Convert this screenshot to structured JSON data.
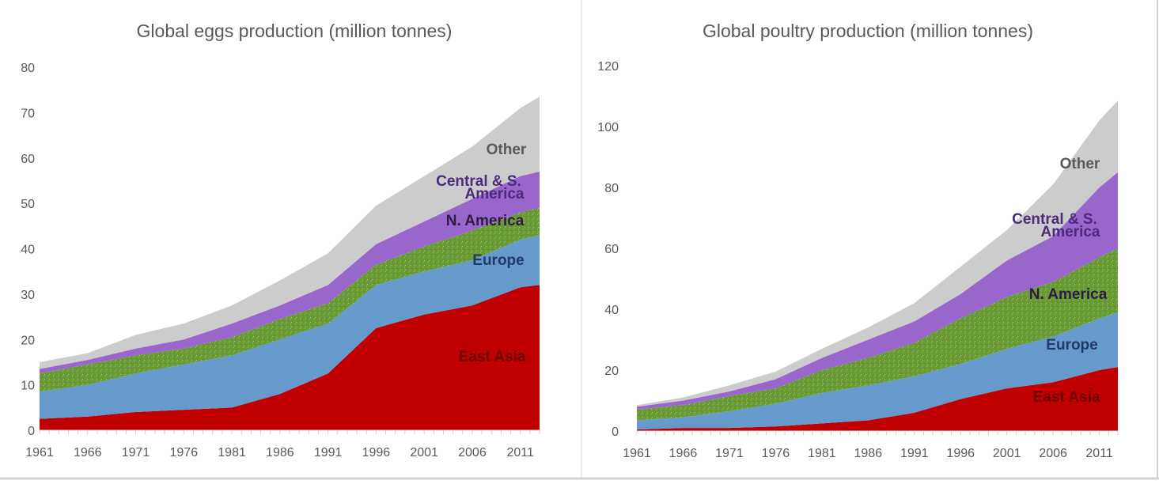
{
  "chart_data": [
    {
      "type": "area",
      "stacked": true,
      "title": "Global eggs production (million tonnes)",
      "xlabel": "",
      "ylabel": "",
      "ylim": [
        0,
        80
      ],
      "yticks": [
        0,
        10,
        20,
        30,
        40,
        50,
        60,
        70,
        80
      ],
      "xtick_labels": [
        "1961",
        "1966",
        "1971",
        "1976",
        "1981",
        "1986",
        "1991",
        "1996",
        "2001",
        "2006",
        "2011"
      ],
      "xlim": [
        1961,
        2013
      ],
      "grid": false,
      "legend": "inline labels on right",
      "x": [
        1961,
        1966,
        1971,
        1976,
        1981,
        1986,
        1991,
        1996,
        2001,
        2006,
        2011,
        2013
      ],
      "series": [
        {
          "name": "East Asia",
          "label_lines": [
            "East Asia"
          ],
          "color": "#c00000",
          "label_color": "#6b0000",
          "values": [
            2.5,
            3,
            4,
            4.5,
            5,
            8,
            12.5,
            22.5,
            25.5,
            27.5,
            31.5,
            32
          ]
        },
        {
          "name": "Europe",
          "label_lines": [
            "Europe"
          ],
          "color": "#6699cc",
          "label_color": "#1f3a68",
          "values": [
            6,
            7,
            8.5,
            10,
            11.5,
            12,
            11,
            9.5,
            9.5,
            10,
            10.5,
            11
          ]
        },
        {
          "name": "N. America",
          "label_lines": [
            "N. America"
          ],
          "color": "#6a9a38",
          "label_color": "#2e1a47",
          "values": [
            4,
            4.5,
            4,
            3.5,
            4,
            4.5,
            4.5,
            4.5,
            5.5,
            6.5,
            6,
            6
          ]
        },
        {
          "name": "Central & S. America",
          "label_lines": [
            "Central & S.",
            "America"
          ],
          "color": "#9966cc",
          "label_color": "#4b2a7a",
          "values": [
            1,
            1,
            1.5,
            2,
            3,
            3,
            4,
            4.5,
            5.5,
            7,
            8,
            8
          ]
        },
        {
          "name": "Other",
          "label_lines": [
            "Other"
          ],
          "color": "#cccccc",
          "label_color": "#595959",
          "values": [
            1.5,
            1.5,
            3,
            3.5,
            4,
            5.5,
            7,
            8.5,
            10,
            11.5,
            15,
            16.5
          ]
        }
      ]
    },
    {
      "type": "area",
      "stacked": true,
      "title": "Global poultry production  (million tonnes)",
      "xlabel": "",
      "ylabel": "",
      "ylim": [
        0,
        120
      ],
      "yticks": [
        0,
        20,
        40,
        60,
        80,
        100,
        120
      ],
      "xtick_labels": [
        "1961",
        "1966",
        "1971",
        "1976",
        "1981",
        "1986",
        "1991",
        "1996",
        "2001",
        "2006",
        "2011"
      ],
      "xlim": [
        1961,
        2013
      ],
      "grid": false,
      "legend": "inline labels on right",
      "x": [
        1961,
        1966,
        1971,
        1976,
        1981,
        1986,
        1991,
        1996,
        2001,
        2006,
        2011,
        2013
      ],
      "series": [
        {
          "name": "East Asia",
          "label_lines": [
            "East Asia"
          ],
          "color": "#c00000",
          "label_color": "#6b0000",
          "values": [
            0.5,
            1,
            1,
            1.5,
            2.5,
            3.5,
            6,
            10.5,
            14,
            16,
            20,
            21
          ]
        },
        {
          "name": "Europe",
          "label_lines": [
            "Europe"
          ],
          "color": "#6699cc",
          "label_color": "#1f3a68",
          "values": [
            3,
            3.5,
            5.5,
            7.5,
            10,
            11.5,
            12,
            11.5,
            13,
            15,
            17,
            18
          ]
        },
        {
          "name": "N. America",
          "label_lines": [
            "N. America"
          ],
          "color": "#6a9a38",
          "label_color": "#2e1a47",
          "values": [
            3.5,
            4,
            5,
            5,
            7.5,
            9,
            11,
            15,
            17,
            18,
            20,
            21
          ]
        },
        {
          "name": "Central & S. America",
          "label_lines": [
            "Central & S.",
            "America"
          ],
          "color": "#9966cc",
          "label_color": "#4b2a7a",
          "values": [
            1,
            1.5,
            1.5,
            3,
            4,
            6,
            7,
            8,
            12,
            15,
            23,
            25
          ]
        },
        {
          "name": "Other",
          "label_lines": [
            "Other"
          ],
          "color": "#cccccc",
          "label_color": "#595959",
          "values": [
            0.5,
            1,
            2,
            2.5,
            3,
            4,
            6,
            9,
            10,
            17,
            22,
            23.5
          ]
        }
      ]
    }
  ]
}
